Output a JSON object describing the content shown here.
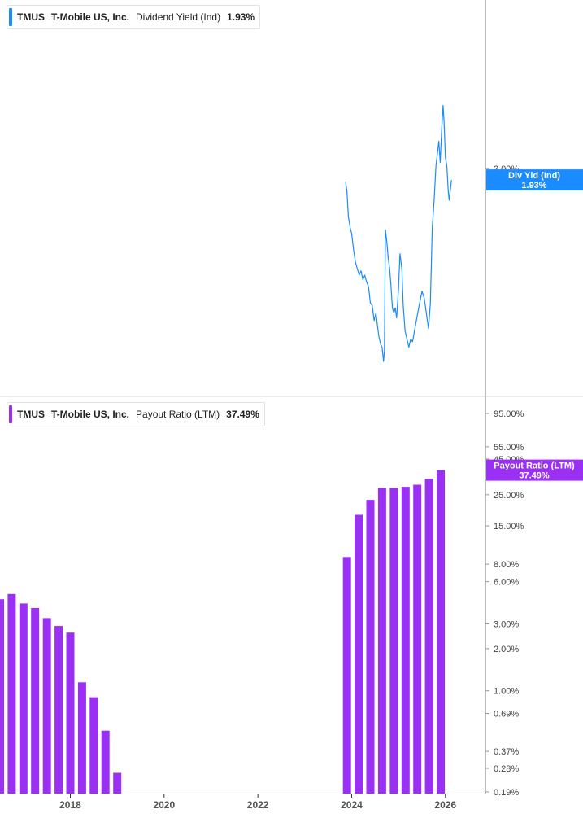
{
  "top_panel": {
    "legend": {
      "ticker": "TMUS",
      "company": "T-Mobile US, Inc.",
      "metric": "Dividend Yield (Ind)",
      "value": "1.93%",
      "color": "#1a8cff"
    },
    "value_flag": {
      "line1": "Div Yld (Ind)",
      "line2": "1.93%",
      "value": 1.93
    }
  },
  "bottom_panel": {
    "legend": {
      "ticker": "TMUS",
      "company": "T-Mobile US, Inc.",
      "metric": "Payout Ratio (LTM)",
      "value": "37.49%",
      "color": "#9b30f5"
    },
    "value_flag": {
      "line1": "Payout Ratio (LTM)",
      "line2": "37.49%",
      "value": 37.49
    }
  },
  "chart_data": [
    {
      "type": "line",
      "series": [
        {
          "name": "Dividend Yield (Ind)",
          "color": "#1a8cff",
          "points": [
            [
              2023.87,
              1.92
            ],
            [
              2023.9,
              1.86
            ],
            [
              2023.93,
              1.72
            ],
            [
              2023.97,
              1.66
            ],
            [
              2024.0,
              1.63
            ],
            [
              2024.04,
              1.55
            ],
            [
              2024.08,
              1.49
            ],
            [
              2024.12,
              1.46
            ],
            [
              2024.16,
              1.43
            ],
            [
              2024.2,
              1.45
            ],
            [
              2024.24,
              1.41
            ],
            [
              2024.28,
              1.43
            ],
            [
              2024.32,
              1.4
            ],
            [
              2024.36,
              1.38
            ],
            [
              2024.4,
              1.31
            ],
            [
              2024.44,
              1.3
            ],
            [
              2024.48,
              1.24
            ],
            [
              2024.52,
              1.27
            ],
            [
              2024.55,
              1.22
            ],
            [
              2024.58,
              1.18
            ],
            [
              2024.62,
              1.15
            ],
            [
              2024.65,
              1.14
            ],
            [
              2024.68,
              1.09
            ],
            [
              2024.7,
              1.13
            ],
            [
              2024.72,
              1.65
            ],
            [
              2024.75,
              1.59
            ],
            [
              2024.78,
              1.51
            ],
            [
              2024.81,
              1.46
            ],
            [
              2024.84,
              1.38
            ],
            [
              2024.87,
              1.29
            ],
            [
              2024.9,
              1.27
            ],
            [
              2024.93,
              1.29
            ],
            [
              2024.96,
              1.25
            ],
            [
              2025.0,
              1.37
            ],
            [
              2025.03,
              1.53
            ],
            [
              2025.07,
              1.46
            ],
            [
              2025.1,
              1.3
            ],
            [
              2025.14,
              1.2
            ],
            [
              2025.18,
              1.17
            ],
            [
              2025.22,
              1.14
            ],
            [
              2025.26,
              1.17
            ],
            [
              2025.3,
              1.16
            ],
            [
              2025.35,
              1.21
            ],
            [
              2025.4,
              1.26
            ],
            [
              2025.45,
              1.31
            ],
            [
              2025.5,
              1.36
            ],
            [
              2025.55,
              1.33
            ],
            [
              2025.6,
              1.26
            ],
            [
              2025.64,
              1.21
            ],
            [
              2025.68,
              1.31
            ],
            [
              2025.72,
              1.66
            ],
            [
              2025.76,
              1.81
            ],
            [
              2025.8,
              2.02
            ],
            [
              2025.83,
              2.1
            ],
            [
              2025.86,
              2.18
            ],
            [
              2025.89,
              2.04
            ],
            [
              2025.92,
              2.26
            ],
            [
              2025.95,
              2.44
            ],
            [
              2025.97,
              2.32
            ],
            [
              2026.0,
              2.07
            ],
            [
              2026.03,
              2.02
            ],
            [
              2026.06,
              1.87
            ],
            [
              2026.08,
              1.81
            ],
            [
              2026.11,
              1.88
            ],
            [
              2026.13,
              1.93
            ]
          ]
        }
      ],
      "y_scale": "log",
      "y_ticks": [
        2.0
      ],
      "y_tick_labels": [
        "2.00%"
      ],
      "xlim": [
        2016.5,
        2026.42
      ],
      "ylim": [
        1.06,
        2.7
      ],
      "grid": false
    },
    {
      "type": "bar",
      "series": [
        {
          "name": "Payout Ratio (LTM)",
          "color": "#9b30f5",
          "points": [
            [
              2016.5,
              4.5
            ],
            [
              2016.75,
              4.9
            ],
            [
              2017.0,
              4.2
            ],
            [
              2017.25,
              3.9
            ],
            [
              2017.5,
              3.3
            ],
            [
              2017.75,
              2.9
            ],
            [
              2018.0,
              2.6
            ],
            [
              2018.25,
              1.15
            ],
            [
              2018.5,
              0.9
            ],
            [
              2018.75,
              0.52
            ],
            [
              2019.0,
              0.26
            ],
            [
              2023.9,
              9.0
            ],
            [
              2024.15,
              18.0
            ],
            [
              2024.4,
              23.0
            ],
            [
              2024.65,
              28.0
            ],
            [
              2024.9,
              28.0
            ],
            [
              2025.15,
              28.5
            ],
            [
              2025.4,
              29.5
            ],
            [
              2025.65,
              32.5
            ],
            [
              2025.9,
              37.49
            ]
          ]
        }
      ],
      "y_scale": "log",
      "y_ticks": [
        95,
        55,
        45,
        25,
        15,
        8,
        6,
        3,
        2,
        1,
        0.69,
        0.37,
        0.28,
        0.19
      ],
      "y_tick_labels": [
        "95.00%",
        "55.00%",
        "45.00%",
        "25.00%",
        "15.00%",
        "8.00%",
        "6.00%",
        "3.00%",
        "2.00%",
        "1.00%",
        "0.69%",
        "0.37%",
        "0.28%",
        "0.19%"
      ],
      "x_ticks": [
        2018,
        2020,
        2022,
        2024,
        2026
      ],
      "x_tick_labels": [
        "2018",
        "2020",
        "2022",
        "2024",
        "2026"
      ],
      "xlim": [
        2016.5,
        2026.42
      ],
      "ylim": [
        0.19,
        95
      ],
      "grid": false
    }
  ]
}
